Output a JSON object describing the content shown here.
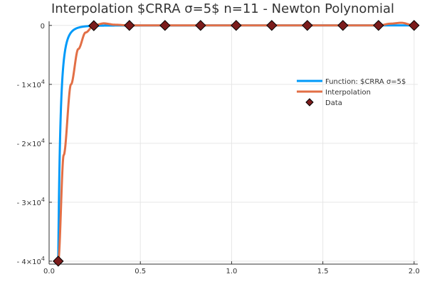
{
  "chart_data": {
    "type": "line",
    "title": "Interpolation $CRRA    σ=5$ n=11 - Newton Polynomial",
    "xlim": [
      0.0,
      2.02
    ],
    "ylim": [
      -40500,
      700
    ],
    "x_ticks": [
      0.0,
      0.5,
      1.0,
      1.5,
      2.0
    ],
    "x_tick_labels": [
      "0.0",
      "0.5",
      "1.0",
      "1.5",
      "2.0"
    ],
    "y_ticks": [
      0,
      -10000,
      -20000,
      -30000,
      -40000
    ],
    "y_tick_labels": [
      {
        "prefix": "0",
        "sup": ""
      },
      {
        "prefix": "- 1×10",
        "sup": "4"
      },
      {
        "prefix": "- 2×10",
        "sup": "4"
      },
      {
        "prefix": "- 3×10",
        "sup": "4"
      },
      {
        "prefix": "- 4×10",
        "sup": "4"
      }
    ],
    "grid": true,
    "legend_position": "right",
    "series": [
      {
        "name": "Function: $CRRA    σ=5$",
        "kind": "line",
        "color": "#009af9",
        "model": "crra_sigma5",
        "x": [
          0.05,
          0.06,
          0.07,
          0.08,
          0.1,
          0.12,
          0.15,
          0.2,
          0.25,
          0.3,
          0.4,
          0.6,
          1.0,
          1.5,
          2.0
        ],
        "y": [
          -40000,
          -19290,
          -10412,
          -6104,
          -2500,
          -1206,
          -494,
          -156,
          -64,
          -31,
          -10,
          -1.9,
          -0.25,
          -0.05,
          -0.016
        ]
      },
      {
        "name": "Interpolation",
        "kind": "line",
        "color": "#e26f46",
        "x": [
          0.05,
          0.08,
          0.12,
          0.16,
          0.2,
          0.245,
          0.3,
          0.36,
          0.44,
          0.6,
          1.0,
          1.4,
          1.6,
          1.81,
          1.87,
          1.93,
          2.0
        ],
        "y": [
          -40000,
          -22000,
          -10000,
          -4000,
          -1200,
          0,
          350,
          120,
          0,
          0,
          0,
          0,
          0,
          0,
          300,
          450,
          0
        ]
      },
      {
        "name": "Data",
        "kind": "scatter",
        "color": "#7b1c1c",
        "x": [
          0.05,
          0.245,
          0.44,
          0.635,
          0.83,
          1.025,
          1.22,
          1.415,
          1.61,
          1.805,
          2.0
        ],
        "y": [
          -40000,
          -36,
          -3.6,
          -1.0,
          -0.4,
          -0.22,
          -0.11,
          -0.063,
          -0.04,
          -0.024,
          -0.016
        ]
      }
    ]
  }
}
